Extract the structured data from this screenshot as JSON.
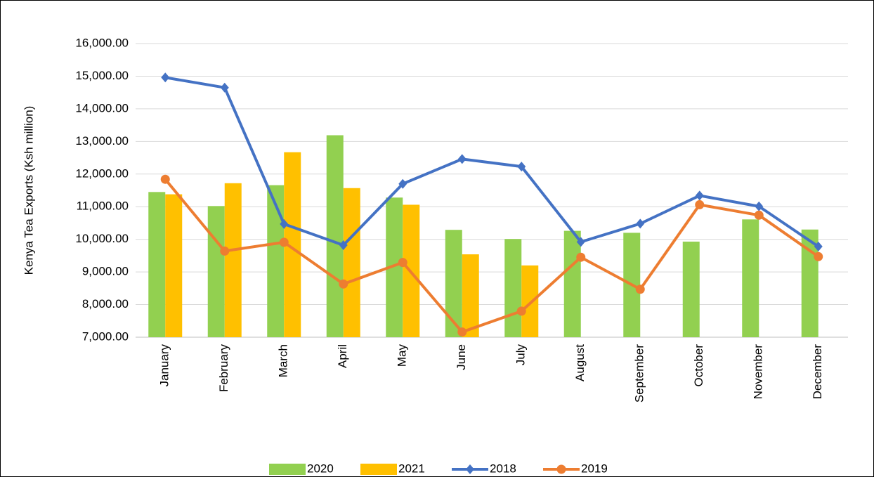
{
  "chart_data": {
    "type": "bar-line",
    "y_axis_label": "Kenya Tea Exports (Ksh million)",
    "categories": [
      "January",
      "February",
      "March",
      "April",
      "May",
      "June",
      "July",
      "August",
      "September",
      "October",
      "November",
      "December"
    ],
    "series": [
      {
        "name": "2020",
        "type": "bar",
        "color": "#92d050",
        "values": [
          11450,
          11020,
          11660,
          13190,
          11280,
          10290,
          10010,
          10260,
          10200,
          9930,
          10610,
          10300
        ]
      },
      {
        "name": "2021",
        "type": "bar",
        "color": "#ffc000",
        "values": [
          11380,
          11720,
          12670,
          11570,
          11060,
          9540,
          9200,
          null,
          null,
          null,
          null,
          null
        ]
      },
      {
        "name": "2018",
        "type": "line",
        "marker": "diamond",
        "color": "#4472c4",
        "values": [
          14960,
          14650,
          10470,
          9820,
          11700,
          12460,
          12230,
          9920,
          10480,
          11340,
          11010,
          9780
        ]
      },
      {
        "name": "2019",
        "type": "line",
        "marker": "circle",
        "color": "#ed7d31",
        "values": [
          11840,
          9640,
          9910,
          8630,
          9290,
          7160,
          7800,
          9450,
          8470,
          11060,
          10740,
          9470
        ]
      }
    ],
    "ylim": [
      7000,
      16000
    ],
    "yticks": [
      {
        "value": 7000,
        "label": "7,000.00"
      },
      {
        "value": 8000,
        "label": "8,000.00"
      },
      {
        "value": 9000,
        "label": "9,000.00"
      },
      {
        "value": 10000,
        "label": "10,000.00"
      },
      {
        "value": 11000,
        "label": "11,000.00"
      },
      {
        "value": 12000,
        "label": "12,000.00"
      },
      {
        "value": 13000,
        "label": "13,000.00"
      },
      {
        "value": 14000,
        "label": "14,000.00"
      },
      {
        "value": 15000,
        "label": "15,000.00"
      },
      {
        "value": 16000,
        "label": "16,000.00"
      }
    ],
    "grid": true,
    "legend": "bottom"
  }
}
